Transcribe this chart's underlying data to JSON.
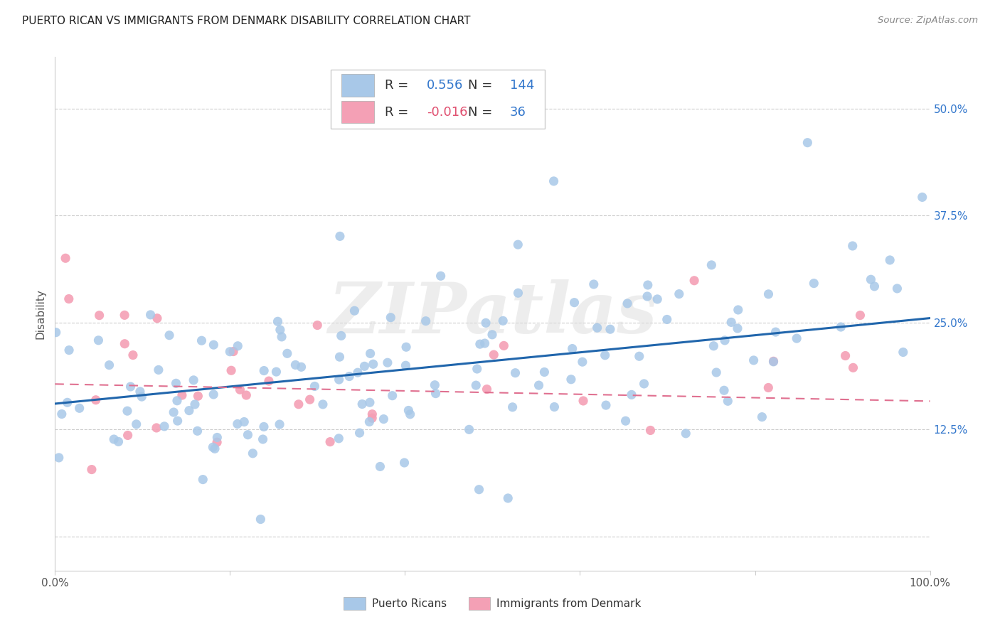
{
  "title": "PUERTO RICAN VS IMMIGRANTS FROM DENMARK DISABILITY CORRELATION CHART",
  "source": "Source: ZipAtlas.com",
  "ylabel": "Disability",
  "yticks": [
    0.0,
    0.125,
    0.25,
    0.375,
    0.5
  ],
  "ytick_labels": [
    "",
    "12.5%",
    "25.0%",
    "37.5%",
    "50.0%"
  ],
  "xlim": [
    0.0,
    1.0
  ],
  "ylim": [
    -0.04,
    0.56
  ],
  "blue_R": 0.556,
  "blue_N": 144,
  "pink_R": -0.016,
  "pink_N": 36,
  "blue_color": "#a8c8e8",
  "pink_color": "#f4a0b5",
  "blue_line_color": "#2166ac",
  "pink_line_color": "#e07090",
  "watermark": "ZIPatlas",
  "legend_label_blue": "Puerto Ricans",
  "legend_label_pink": "Immigrants from Denmark",
  "blue_trend_x0": 0.0,
  "blue_trend_x1": 1.0,
  "blue_trend_y0": 0.155,
  "blue_trend_y1": 0.255,
  "pink_trend_x0": 0.0,
  "pink_trend_x1": 1.0,
  "pink_trend_y0": 0.178,
  "pink_trend_y1": 0.158
}
